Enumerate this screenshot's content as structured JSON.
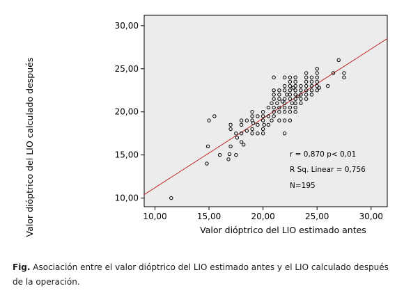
{
  "chart_data": {
    "type": "scatter",
    "xlabel": "Valor dióptrico del LIO estimado antes",
    "ylabel": "Valor dióptrico del LIO calculado después",
    "xlim": [
      9,
      31.5
    ],
    "ylim": [
      9,
      31.2
    ],
    "x_ticks": [
      "10,00",
      "15,00",
      "20,00",
      "25,00",
      "30,00"
    ],
    "y_ticks": [
      "10,00",
      "15,00",
      "20,00",
      "25,00",
      "30,00"
    ],
    "x_tick_values": [
      10,
      15,
      20,
      25,
      30
    ],
    "y_tick_values": [
      10,
      15,
      20,
      25,
      30
    ],
    "grid": false,
    "plot_background": "#ececec",
    "point_color": "#000000",
    "fit_line": {
      "color": "#c0282a",
      "x": [
        9,
        31.5
      ],
      "y": [
        10.4,
        28.5
      ]
    },
    "annotations": [
      "r = 0,870 p< 0,01",
      "R Sq. Linear = 0,756",
      "N=195"
    ],
    "points": [
      [
        11.5,
        10.0
      ],
      [
        14.8,
        14.0
      ],
      [
        14.9,
        16.0
      ],
      [
        15.0,
        19.0
      ],
      [
        15.5,
        19.5
      ],
      [
        16.0,
        15.0
      ],
      [
        16.8,
        14.5
      ],
      [
        16.9,
        15.1
      ],
      [
        17.0,
        18.0
      ],
      [
        17.0,
        18.5
      ],
      [
        17.0,
        16.0
      ],
      [
        17.5,
        15.0
      ],
      [
        17.5,
        17.5
      ],
      [
        17.6,
        17.0
      ],
      [
        18.0,
        16.5
      ],
      [
        18.0,
        17.5
      ],
      [
        18.0,
        18.5
      ],
      [
        18.0,
        19.0
      ],
      [
        18.2,
        16.2
      ],
      [
        18.5,
        17.8
      ],
      [
        18.5,
        19.0
      ],
      [
        19.0,
        17.5
      ],
      [
        19.0,
        18.0
      ],
      [
        19.0,
        19.0
      ],
      [
        19.0,
        19.5
      ],
      [
        19.0,
        20.0
      ],
      [
        19.1,
        18.7
      ],
      [
        19.5,
        17.5
      ],
      [
        19.5,
        18.5
      ],
      [
        19.5,
        19.5
      ],
      [
        20.0,
        17.5
      ],
      [
        20.0,
        18.0
      ],
      [
        20.0,
        19.0
      ],
      [
        20.0,
        20.0
      ],
      [
        20.0,
        19.5
      ],
      [
        20.1,
        18.5
      ],
      [
        20.5,
        18.5
      ],
      [
        20.5,
        19.5
      ],
      [
        20.5,
        20.5
      ],
      [
        20.8,
        21.0
      ],
      [
        20.8,
        19.0
      ],
      [
        21.0,
        20.0
      ],
      [
        21.0,
        20.5
      ],
      [
        21.0,
        21.5
      ],
      [
        21.0,
        22.0
      ],
      [
        21.0,
        22.5
      ],
      [
        21.0,
        24.0
      ],
      [
        21.0,
        19.5
      ],
      [
        21.3,
        21.0
      ],
      [
        21.5,
        20.0
      ],
      [
        21.5,
        21.5
      ],
      [
        21.5,
        22.0
      ],
      [
        21.5,
        22.5
      ],
      [
        21.5,
        19.0
      ],
      [
        21.5,
        20.5
      ],
      [
        21.8,
        21.2
      ],
      [
        22.0,
        19.0
      ],
      [
        22.0,
        20.0
      ],
      [
        22.0,
        20.5
      ],
      [
        22.0,
        21.0
      ],
      [
        22.0,
        21.5
      ],
      [
        22.0,
        22.5
      ],
      [
        22.0,
        23.0
      ],
      [
        22.0,
        24.0
      ],
      [
        22.0,
        17.5
      ],
      [
        22.2,
        22.0
      ],
      [
        22.5,
        19.0
      ],
      [
        22.5,
        20.0
      ],
      [
        22.5,
        20.5
      ],
      [
        22.5,
        21.5
      ],
      [
        22.5,
        22.0
      ],
      [
        22.5,
        22.5
      ],
      [
        22.5,
        23.0
      ],
      [
        22.5,
        23.5
      ],
      [
        22.5,
        24.0
      ],
      [
        22.7,
        21.0
      ],
      [
        22.8,
        22.8
      ],
      [
        23.0,
        20.0
      ],
      [
        23.0,
        20.5
      ],
      [
        23.0,
        21.0
      ],
      [
        23.0,
        21.5
      ],
      [
        23.0,
        22.0
      ],
      [
        23.0,
        22.5
      ],
      [
        23.0,
        23.0
      ],
      [
        23.0,
        23.5
      ],
      [
        23.0,
        24.0
      ],
      [
        23.2,
        21.8
      ],
      [
        23.5,
        21.0
      ],
      [
        23.5,
        21.5
      ],
      [
        23.5,
        22.0
      ],
      [
        23.5,
        22.5
      ],
      [
        23.5,
        23.0
      ],
      [
        24.0,
        21.5
      ],
      [
        24.0,
        22.0
      ],
      [
        24.0,
        22.5
      ],
      [
        24.0,
        23.0
      ],
      [
        24.0,
        23.5
      ],
      [
        24.0,
        24.0
      ],
      [
        24.0,
        24.5
      ],
      [
        24.5,
        22.0
      ],
      [
        24.5,
        22.5
      ],
      [
        24.5,
        23.0
      ],
      [
        24.5,
        23.5
      ],
      [
        24.5,
        24.0
      ],
      [
        25.0,
        22.5
      ],
      [
        25.0,
        23.0
      ],
      [
        25.0,
        23.5
      ],
      [
        25.0,
        24.0
      ],
      [
        25.0,
        24.5
      ],
      [
        25.0,
        25.0
      ],
      [
        25.2,
        22.8
      ],
      [
        26.0,
        23.0
      ],
      [
        26.5,
        24.5
      ],
      [
        27.0,
        26.0
      ],
      [
        27.5,
        24.0
      ],
      [
        27.5,
        24.5
      ]
    ]
  },
  "caption": {
    "label": "Fig.",
    "text": " Asociación entre el valor dióptrico del LIO estimado antes y el LIO calculado después de la operación."
  }
}
